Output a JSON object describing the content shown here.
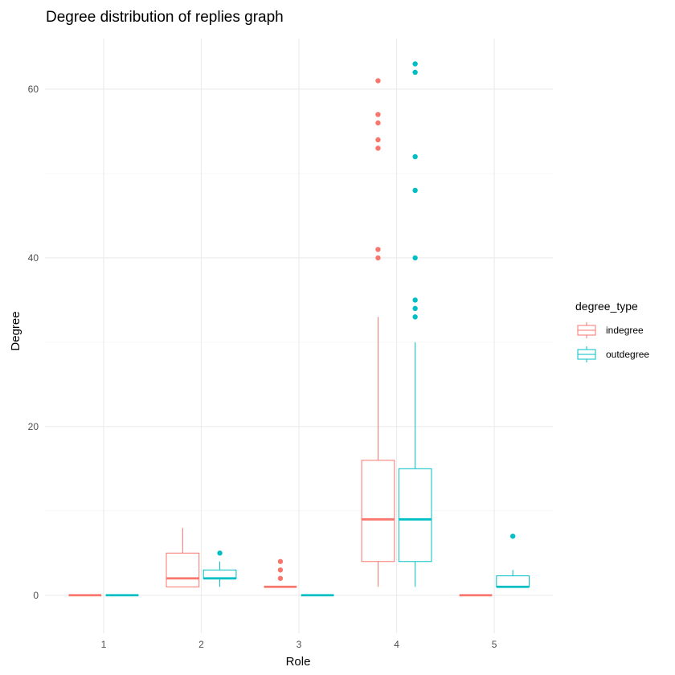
{
  "chart_data": {
    "type": "boxplot",
    "title": "Degree distribution of replies graph",
    "xlabel": "Role",
    "ylabel": "Degree",
    "categories": [
      "1",
      "2",
      "3",
      "4",
      "5"
    ],
    "ylim": [
      -4.5,
      66
    ],
    "y_ticks": [
      0,
      20,
      40,
      60
    ],
    "y_minor_ticks": [
      10,
      30,
      50
    ],
    "grid": true,
    "legend": {
      "title": "degree_type",
      "position": "right",
      "entries": [
        "indegree",
        "outdegree"
      ]
    },
    "series": [
      {
        "name": "indegree",
        "color": "#F8766D",
        "boxes": [
          {
            "category": "1",
            "q1": 0,
            "median": 0,
            "q3": 0,
            "whisker_low": 0,
            "whisker_high": 0,
            "outliers": []
          },
          {
            "category": "2",
            "q1": 1,
            "median": 2,
            "q3": 5,
            "whisker_low": 1,
            "whisker_high": 8,
            "outliers": []
          },
          {
            "category": "3",
            "q1": 1,
            "median": 1,
            "q3": 1,
            "whisker_low": 1,
            "whisker_high": 1,
            "outliers": [
              2,
              3,
              4
            ]
          },
          {
            "category": "4",
            "q1": 4,
            "median": 9,
            "q3": 16,
            "whisker_low": 1,
            "whisker_high": 33,
            "outliers": [
              40,
              41,
              53,
              54,
              56,
              57,
              61
            ]
          },
          {
            "category": "5",
            "q1": 0,
            "median": 0,
            "q3": 0,
            "whisker_low": 0,
            "whisker_high": 0,
            "outliers": []
          }
        ]
      },
      {
        "name": "outdegree",
        "color": "#00BFC4",
        "boxes": [
          {
            "category": "1",
            "q1": 0,
            "median": 0,
            "q3": 0,
            "whisker_low": 0,
            "whisker_high": 0,
            "outliers": []
          },
          {
            "category": "2",
            "q1": 2,
            "median": 2,
            "q3": 3,
            "whisker_low": 1,
            "whisker_high": 4,
            "outliers": [
              5
            ]
          },
          {
            "category": "3",
            "q1": 0,
            "median": 0,
            "q3": 0,
            "whisker_low": 0,
            "whisker_high": 0,
            "outliers": []
          },
          {
            "category": "4",
            "q1": 4,
            "median": 9,
            "q3": 15,
            "whisker_low": 1,
            "whisker_high": 30,
            "outliers": [
              33,
              34,
              35,
              40,
              48,
              52,
              62,
              63
            ]
          },
          {
            "category": "5",
            "q1": 1,
            "median": 1,
            "q3": 2.3,
            "whisker_low": 1,
            "whisker_high": 3,
            "outliers": [
              7
            ]
          }
        ]
      }
    ]
  }
}
